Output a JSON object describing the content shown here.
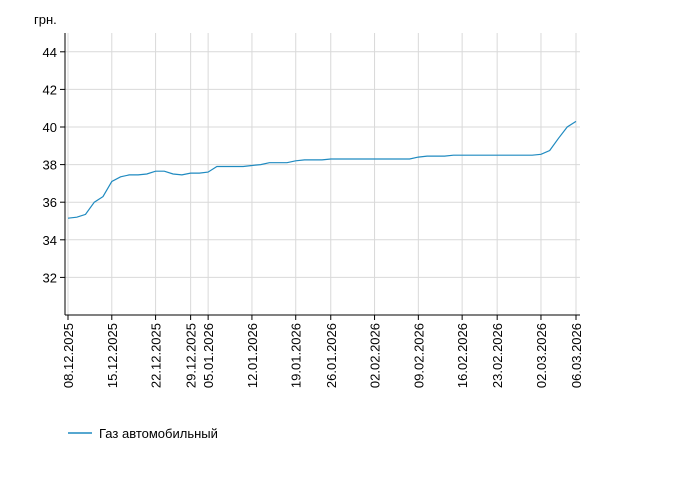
{
  "chart_data": {
    "type": "line",
    "y_label": "грн.",
    "categories": [
      "08.12.2025",
      null,
      null,
      null,
      null,
      "15.12.2025",
      null,
      null,
      null,
      null,
      "22.12.2025",
      null,
      null,
      null,
      "29.12.2025",
      null,
      "05.01.2026",
      null,
      null,
      null,
      null,
      "12.01.2026",
      null,
      null,
      null,
      null,
      "19.01.2026",
      null,
      null,
      null,
      "26.01.2026",
      null,
      null,
      null,
      null,
      "02.02.2026",
      null,
      null,
      null,
      null,
      "09.02.2026",
      null,
      null,
      null,
      null,
      "16.02.2026",
      null,
      null,
      null,
      "23.02.2026",
      null,
      null,
      null,
      null,
      "02.03.2026",
      null,
      null,
      null,
      "06.03.2026"
    ],
    "series": [
      {
        "name": "Газ автомобильный",
        "color": "#1f8ac0",
        "values": [
          35.15,
          35.2,
          35.35,
          36.0,
          36.3,
          37.1,
          37.35,
          37.45,
          37.45,
          37.5,
          37.65,
          37.65,
          37.5,
          37.45,
          37.55,
          37.55,
          37.6,
          37.9,
          37.9,
          37.9,
          37.9,
          37.95,
          38.0,
          38.1,
          38.1,
          38.1,
          38.2,
          38.25,
          38.25,
          38.25,
          38.3,
          38.3,
          38.3,
          38.3,
          38.3,
          38.3,
          38.3,
          38.3,
          38.3,
          38.3,
          38.4,
          38.45,
          38.45,
          38.45,
          38.5,
          38.5,
          38.5,
          38.5,
          38.5,
          38.5,
          38.5,
          38.5,
          38.5,
          38.5,
          38.55,
          38.75,
          39.4,
          40.0,
          40.3
        ]
      }
    ],
    "ylim": [
      30,
      45
    ],
    "yticks": [
      32,
      34,
      36,
      38,
      40,
      42,
      44
    ],
    "grid": true
  }
}
